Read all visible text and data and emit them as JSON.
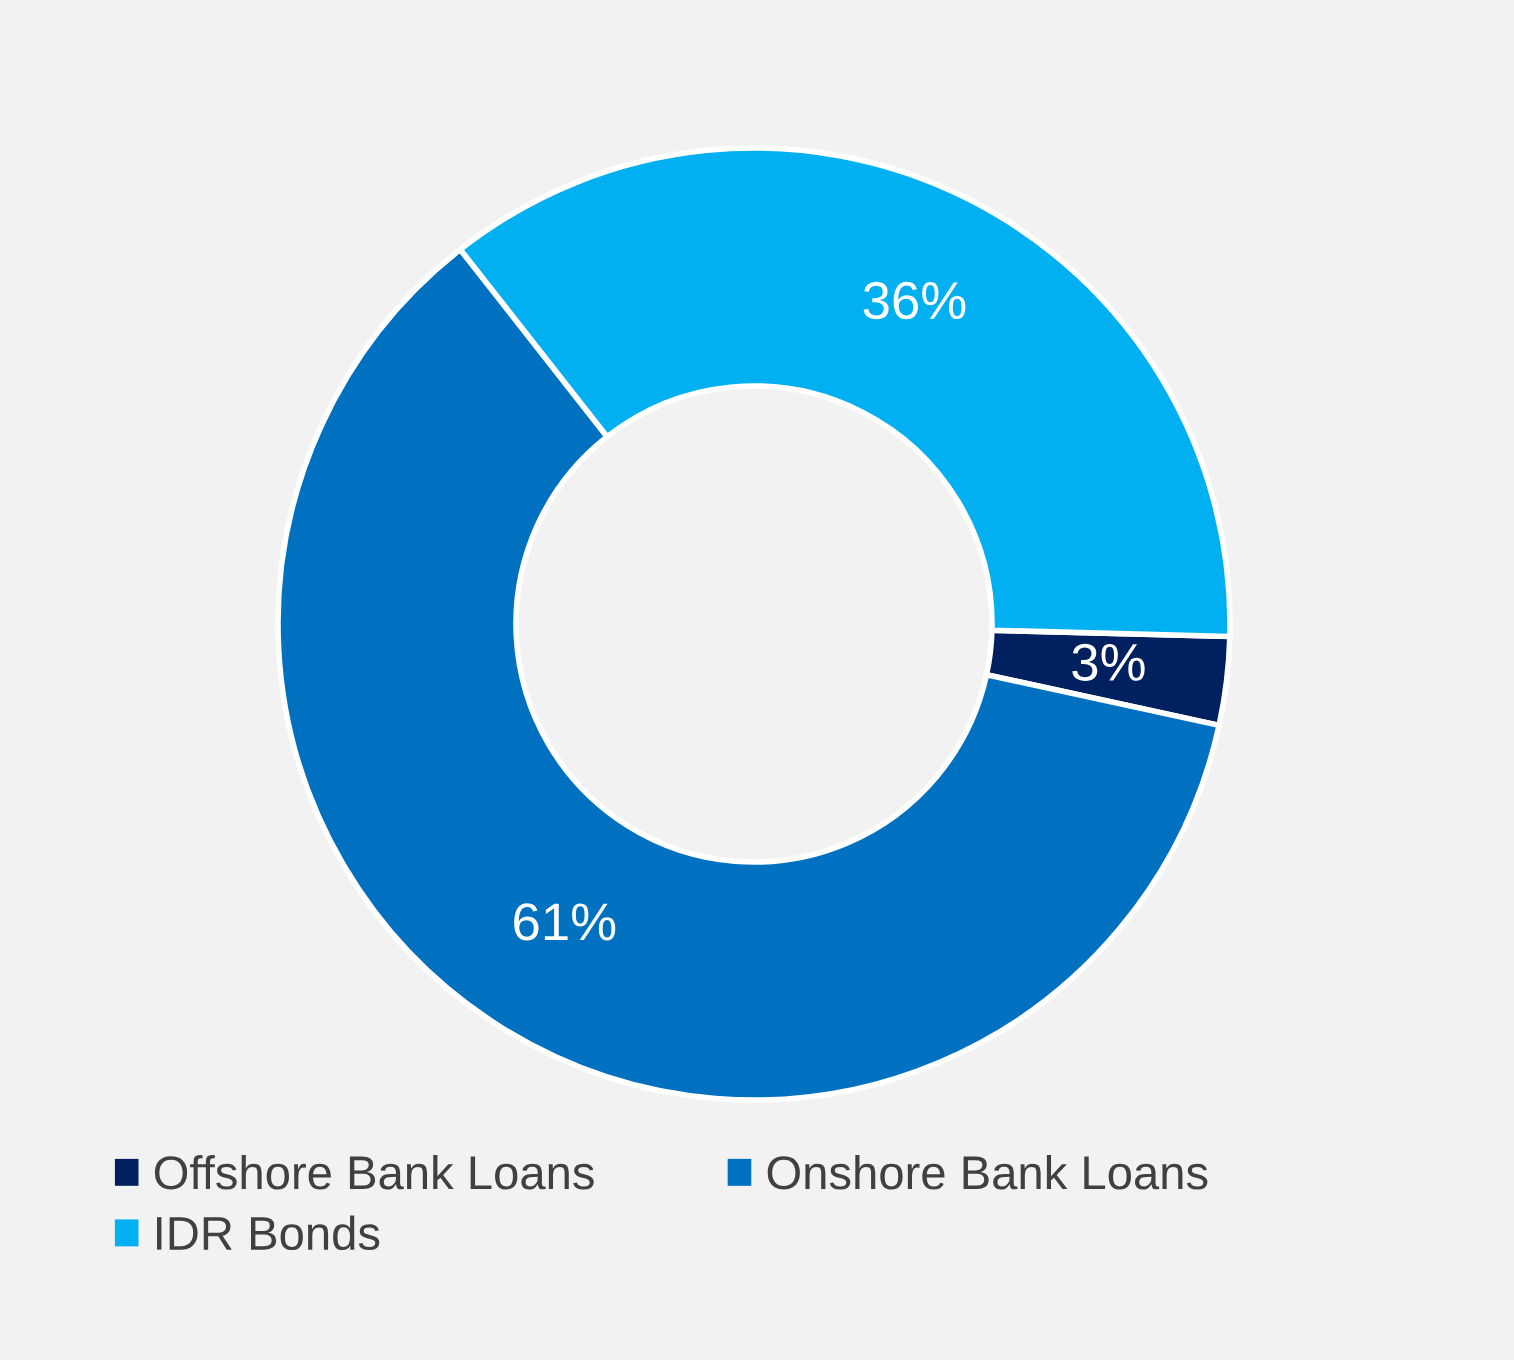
{
  "chart_data": {
    "type": "donut",
    "categories": [
      "Offshore Bank Loans",
      "Onshore Bank Loans",
      "IDR Bonds"
    ],
    "values": [
      3,
      61,
      36
    ],
    "colors": [
      "#002060",
      "#0070c0",
      "#00b0f0"
    ],
    "value_labels": [
      "3%",
      "61%",
      "36%"
    ],
    "legend": "bottom"
  }
}
